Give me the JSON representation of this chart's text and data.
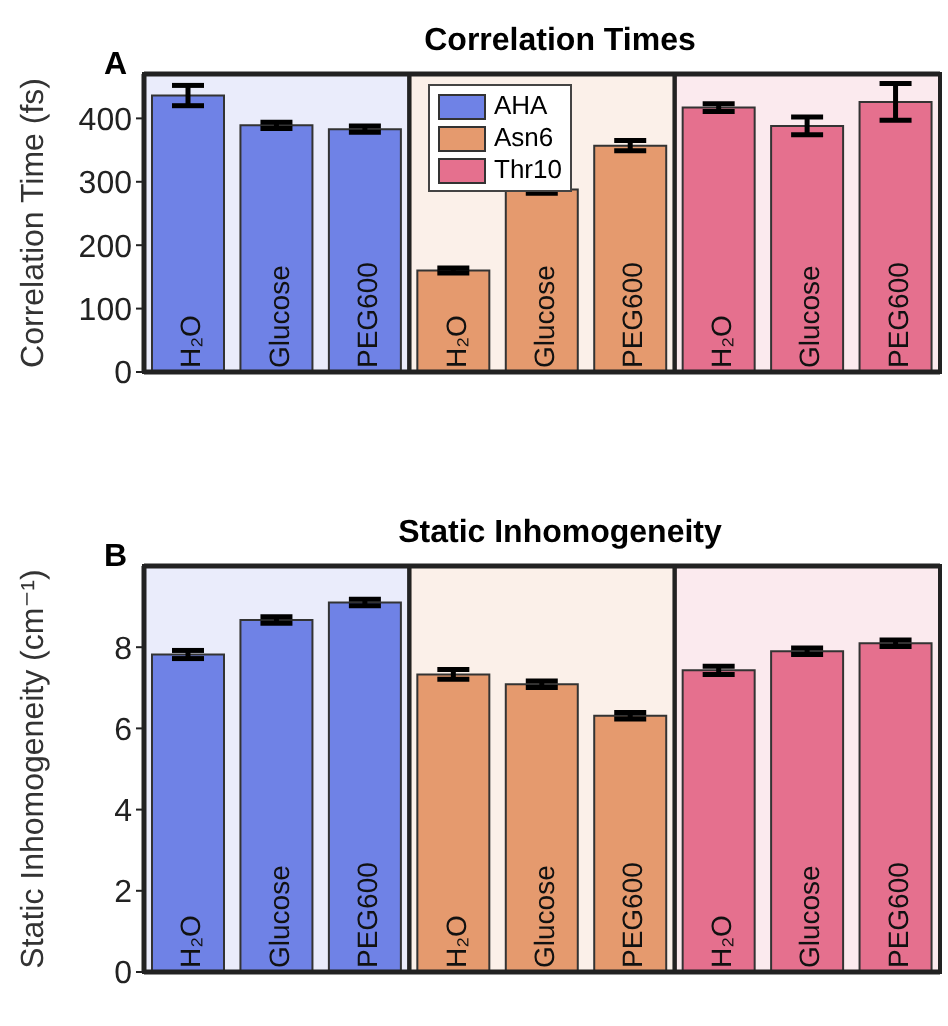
{
  "chart_data": [
    {
      "type": "bar",
      "title": "Correlation Times",
      "ylabel": "Correlation Time (fs)",
      "annotations": [
        "A"
      ],
      "categories": [
        "H₂O",
        "Glucose",
        "PEG600",
        "H₂O",
        "Glucose",
        "PEG600",
        "H₂O",
        "Glucose",
        "PEG600"
      ],
      "series": [
        {
          "name": "AHA",
          "color": "#6f82e6",
          "values": [
            436,
            389,
            383,
            null,
            null,
            null,
            null,
            null,
            null
          ],
          "errors": [
            16,
            5,
            5,
            null,
            null,
            null,
            null,
            null,
            null
          ]
        },
        {
          "name": "Asn6",
          "color": "#e59a6e",
          "values": [
            null,
            null,
            null,
            160,
            288,
            357,
            null,
            null,
            null
          ],
          "errors": [
            null,
            null,
            null,
            4,
            6,
            8,
            null,
            null,
            null
          ]
        },
        {
          "name": "Thr10",
          "color": "#e5708e",
          "values": [
            null,
            null,
            null,
            null,
            null,
            null,
            417,
            388,
            426
          ],
          "errors": [
            null,
            null,
            null,
            null,
            null,
            null,
            6,
            14,
            29
          ]
        }
      ],
      "ylim": [
        0,
        470
      ],
      "yticks": [
        0,
        100,
        200,
        300,
        400
      ],
      "legend": "top"
    },
    {
      "type": "bar",
      "title": "Static Inhomogeneity",
      "ylabel": "Static Inhomogeneity (cm⁻¹)",
      "annotations": [
        "B"
      ],
      "categories": [
        "H₂O",
        "Glucose",
        "PEG600",
        "H₂O",
        "Glucose",
        "PEG600",
        "H₂O",
        "Glucose",
        "PEG600"
      ],
      "series": [
        {
          "color": "#6f82e6",
          "values": [
            7.82,
            8.67,
            9.1,
            null,
            null,
            null,
            null,
            null,
            null
          ],
          "errors": [
            0.1,
            0.08,
            0.08,
            null,
            null,
            null,
            null,
            null,
            null
          ]
        },
        {
          "color": "#e59a6e",
          "values": [
            null,
            null,
            null,
            7.33,
            7.09,
            6.31,
            null,
            null,
            null
          ],
          "errors": [
            null,
            null,
            null,
            0.12,
            0.08,
            0.08,
            null,
            null,
            null
          ]
        },
        {
          "color": "#e5708e",
          "values": [
            null,
            null,
            null,
            null,
            null,
            null,
            7.43,
            7.9,
            8.1
          ],
          "errors": [
            null,
            null,
            null,
            null,
            null,
            null,
            0.1,
            0.08,
            0.08
          ]
        }
      ],
      "ylim": [
        0,
        10
      ],
      "yticks": [
        0,
        2,
        4,
        6,
        8
      ]
    }
  ]
}
